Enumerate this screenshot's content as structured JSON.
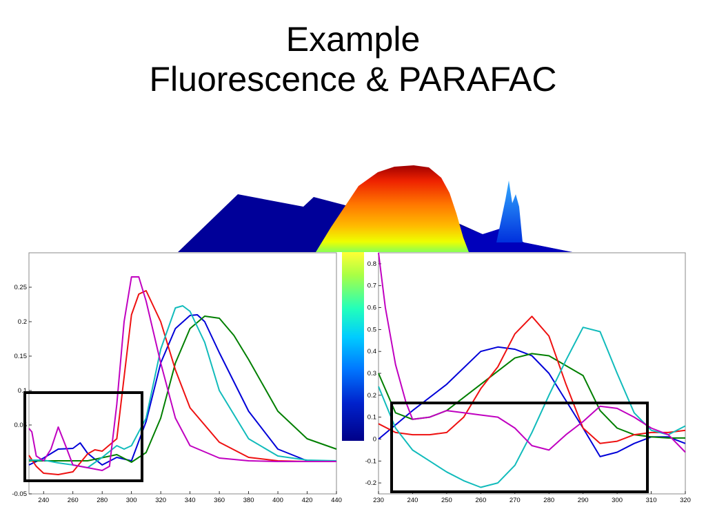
{
  "slide": {
    "title_line1": "Example",
    "title_line2": "Fluorescence & PARAFAC"
  },
  "colors": {
    "blue": "#0000d8",
    "green": "#007f00",
    "red": "#ee1111",
    "cyan": "#11bbbb",
    "magenta": "#c000c0"
  },
  "chart_data": [
    {
      "type": "line",
      "title": "",
      "xlabel": "",
      "ylabel": "",
      "xlim": [
        230,
        440
      ],
      "ylim": [
        -0.05,
        0.3
      ],
      "x_ticks": [
        240,
        260,
        280,
        300,
        320,
        340,
        360,
        380,
        400,
        420,
        440
      ],
      "y_ticks": [
        -0.05,
        0,
        0.05,
        0.1,
        0.15,
        0.2,
        0.25
      ],
      "y_tick_labels": [
        "-0.05",
        "",
        "0.05",
        "0.1",
        "0.15",
        "0.2",
        "0.25"
      ],
      "grid": false,
      "annotation": "black rectangle around x 228-306, y -0.028 to 0.1",
      "series": [
        {
          "color": "blue",
          "x": [
            230,
            240,
            250,
            260,
            265,
            270,
            280,
            290,
            300,
            310,
            320,
            330,
            340,
            345,
            350,
            360,
            380,
            400,
            420,
            440
          ],
          "y": [
            -0.008,
            0.002,
            0.015,
            0.016,
            0.024,
            0.009,
            -0.008,
            0.003,
            -0.002,
            0.055,
            0.14,
            0.19,
            0.209,
            0.21,
            0.2,
            0.155,
            0.07,
            0.015,
            -0.002,
            -0.003
          ]
        },
        {
          "color": "green",
          "x": [
            230,
            250,
            270,
            290,
            300,
            310,
            320,
            330,
            340,
            350,
            360,
            370,
            380,
            400,
            420,
            440
          ],
          "y": [
            -0.002,
            -0.002,
            -0.002,
            0.007,
            -0.004,
            0.01,
            0.06,
            0.14,
            0.19,
            0.208,
            0.205,
            0.18,
            0.145,
            0.07,
            0.03,
            0.015
          ]
        },
        {
          "color": "red",
          "x": [
            230,
            235,
            240,
            250,
            260,
            270,
            275,
            280,
            290,
            300,
            305,
            310,
            320,
            330,
            340,
            360,
            380,
            400,
            420,
            440
          ],
          "y": [
            0.006,
            -0.01,
            -0.02,
            -0.022,
            -0.018,
            0.008,
            0.014,
            0.012,
            0.03,
            0.21,
            0.24,
            0.245,
            0.2,
            0.13,
            0.075,
            0.025,
            0.003,
            -0.002,
            -0.003,
            -0.003
          ]
        },
        {
          "color": "cyan",
          "x": [
            230,
            240,
            250,
            260,
            270,
            280,
            290,
            295,
            300,
            310,
            320,
            330,
            335,
            340,
            350,
            360,
            380,
            400,
            420,
            440
          ],
          "y": [
            -0.001,
            -0.001,
            -0.005,
            -0.008,
            -0.012,
            0.003,
            0.02,
            0.015,
            0.02,
            0.06,
            0.16,
            0.22,
            0.223,
            0.215,
            0.17,
            0.1,
            0.03,
            0.005,
            -0.001,
            -0.002
          ]
        },
        {
          "color": "magenta",
          "x": [
            230,
            232,
            235,
            240,
            245,
            250,
            255,
            260,
            270,
            280,
            285,
            290,
            295,
            300,
            305,
            310,
            320,
            330,
            340,
            360,
            380,
            400,
            420,
            440
          ],
          "y": [
            0.045,
            0.04,
            0.005,
            -0.002,
            0.015,
            0.047,
            0.02,
            -0.008,
            -0.012,
            -0.016,
            -0.01,
            0.08,
            0.2,
            0.265,
            0.265,
            0.23,
            0.14,
            0.06,
            0.02,
            0.002,
            -0.002,
            -0.003,
            -0.003,
            -0.003
          ]
        }
      ]
    },
    {
      "type": "line",
      "title": "",
      "xlabel": "",
      "ylabel": "",
      "xlim": [
        230,
        320
      ],
      "ylim": [
        -0.25,
        0.85
      ],
      "x_ticks": [
        230,
        240,
        250,
        260,
        270,
        280,
        290,
        300,
        310,
        320
      ],
      "y_ticks": [
        -0.2,
        -0.1,
        0,
        0.1,
        0.2,
        0.3,
        0.4,
        0.5,
        0.6,
        0.7,
        0.8
      ],
      "y_tick_labels": [
        "-0.2",
        "-0.1",
        "0",
        "0.1",
        "0.2",
        "0.3",
        "0.4",
        "0.5",
        "0.6",
        "0.7",
        "0.8"
      ],
      "grid": false,
      "annotation": "black rectangle around x 234-309, y -0.24 to 0.19",
      "series": [
        {
          "color": "blue",
          "x": [
            230,
            240,
            250,
            260,
            265,
            270,
            275,
            280,
            290,
            295,
            300,
            305,
            310,
            315,
            320
          ],
          "y": [
            0,
            0.13,
            0.25,
            0.4,
            0.42,
            0.41,
            0.38,
            0.3,
            0.05,
            -0.08,
            -0.06,
            -0.02,
            0.01,
            0.01,
            -0.02
          ]
        },
        {
          "color": "green",
          "x": [
            230,
            235,
            240,
            245,
            250,
            260,
            270,
            275,
            280,
            290,
            295,
            300,
            305,
            310,
            315,
            320
          ],
          "y": [
            0.3,
            0.12,
            0.09,
            0.1,
            0.13,
            0.25,
            0.37,
            0.39,
            0.38,
            0.29,
            0.13,
            0.05,
            0.02,
            0.01,
            0.005,
            0.005
          ]
        },
        {
          "color": "red",
          "x": [
            230,
            235,
            240,
            245,
            250,
            255,
            260,
            265,
            270,
            275,
            280,
            285,
            290,
            295,
            300,
            305,
            310,
            315,
            320
          ],
          "y": [
            0.07,
            0.03,
            0.02,
            0.02,
            0.03,
            0.1,
            0.23,
            0.33,
            0.48,
            0.56,
            0.47,
            0.25,
            0.05,
            -0.02,
            -0.01,
            0.02,
            0.03,
            0.03,
            0.04
          ]
        },
        {
          "color": "cyan",
          "x": [
            230,
            235,
            240,
            245,
            250,
            255,
            260,
            265,
            270,
            275,
            280,
            285,
            290,
            295,
            300,
            305,
            310,
            315,
            320
          ],
          "y": [
            0.24,
            0.05,
            -0.05,
            -0.1,
            -0.15,
            -0.19,
            -0.22,
            -0.2,
            -0.12,
            0.03,
            0.2,
            0.36,
            0.51,
            0.49,
            0.3,
            0.12,
            0.04,
            0.02,
            0.06
          ]
        },
        {
          "color": "magenta",
          "x": [
            230,
            232,
            235,
            238,
            240,
            245,
            250,
            255,
            260,
            265,
            270,
            275,
            280,
            285,
            290,
            295,
            300,
            305,
            310,
            315,
            320
          ],
          "y": [
            0.85,
            0.6,
            0.34,
            0.17,
            0.09,
            0.1,
            0.13,
            0.12,
            0.11,
            0.1,
            0.05,
            -0.03,
            -0.05,
            0.02,
            0.08,
            0.15,
            0.14,
            0.1,
            0.05,
            0.02,
            -0.06
          ]
        }
      ]
    }
  ]
}
